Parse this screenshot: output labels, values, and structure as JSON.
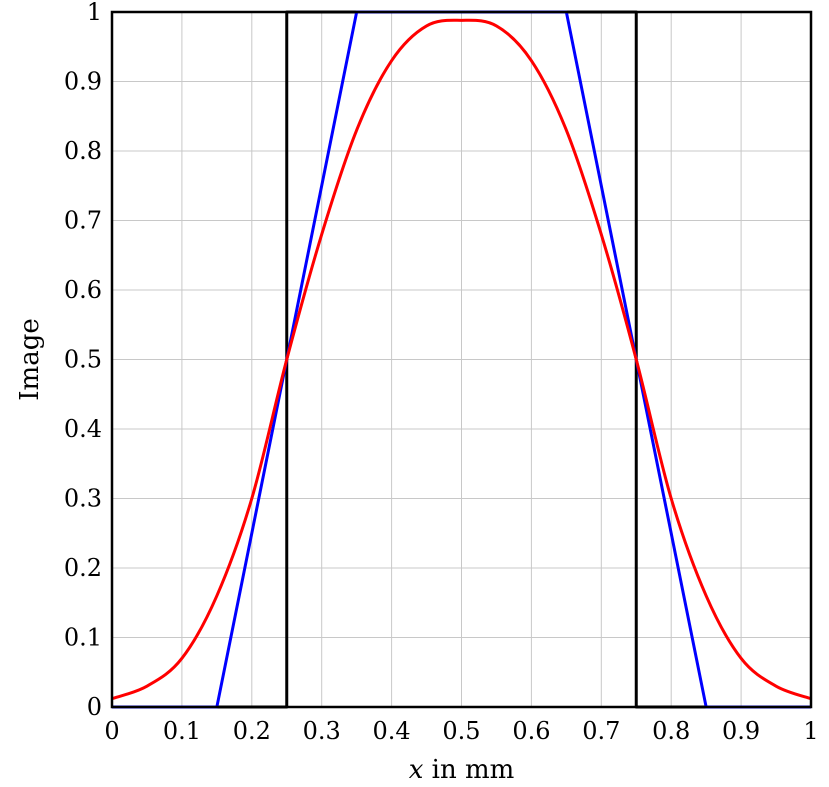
{
  "chart_data": {
    "type": "line",
    "xlabel": "x in mm",
    "xlabel_italic": "x",
    "xlabel_rest": " in mm",
    "ylabel": "Image",
    "xlim": [
      0,
      1
    ],
    "ylim": [
      0,
      1
    ],
    "grid": true,
    "x_ticks": [
      "0",
      "0.1",
      "0.2",
      "0.3",
      "0.4",
      "0.5",
      "0.6",
      "0.7",
      "0.8",
      "0.9",
      "1"
    ],
    "y_ticks": [
      "0",
      "0.1",
      "0.2",
      "0.3",
      "0.4",
      "0.5",
      "0.6",
      "0.7",
      "0.8",
      "0.9",
      "1"
    ],
    "series": [
      {
        "color": "#000000",
        "x": [
          0,
          0.25,
          0.25,
          0.75,
          0.75,
          1
        ],
        "y": [
          0,
          0,
          1,
          1,
          0,
          0
        ]
      },
      {
        "color": "#0000ff",
        "x": [
          0,
          0.15,
          0.35,
          0.65,
          0.85,
          1
        ],
        "y": [
          0,
          0,
          1,
          1,
          0,
          0
        ]
      },
      {
        "color": "#ff0000",
        "x": [
          0,
          0.05,
          0.1,
          0.15,
          0.2,
          0.25,
          0.3,
          0.35,
          0.4,
          0.45,
          0.5,
          0.55,
          0.6,
          0.65,
          0.7,
          0.75,
          0.8,
          0.85,
          0.9,
          0.95,
          1
        ],
        "y": [
          0.012,
          0.03,
          0.07,
          0.16,
          0.3,
          0.5,
          0.68,
          0.83,
          0.93,
          0.98,
          0.988,
          0.98,
          0.93,
          0.83,
          0.68,
          0.5,
          0.3,
          0.16,
          0.07,
          0.03,
          0.012
        ]
      }
    ]
  }
}
